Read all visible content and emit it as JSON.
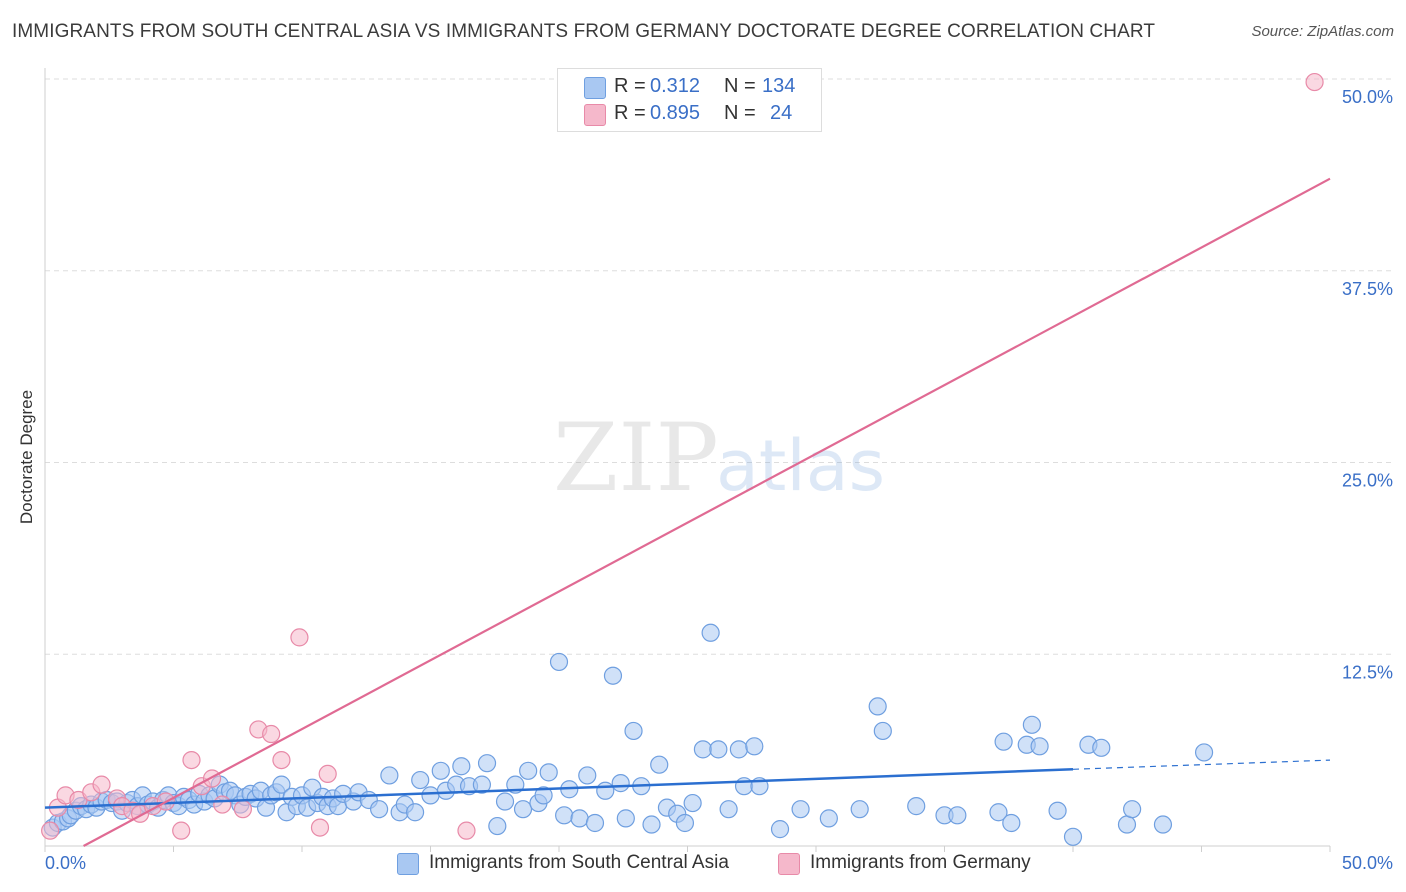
{
  "title": "IMMIGRANTS FROM SOUTH CENTRAL ASIA VS IMMIGRANTS FROM GERMANY DOCTORATE DEGREE CORRELATION CHART",
  "source": "Source: ZipAtlas.com",
  "watermark": {
    "zip": "ZIP",
    "atlas": "atlas"
  },
  "legend": {
    "rows": [
      {
        "r_label": "R =",
        "r_value": "0.312",
        "n_label": "N =",
        "n_value": "134",
        "color": "#a9c8f2"
      },
      {
        "r_label": "R =",
        "r_value": "0.895",
        "n_label": "N =",
        "n_value": "24",
        "color": "#f5b8cb"
      }
    ]
  },
  "bottom_legend": [
    {
      "label": "Immigrants from South Central Asia",
      "color": "#a9c8f2"
    },
    {
      "label": "Immigrants from Germany",
      "color": "#f5b8cb"
    }
  ],
  "colors": {
    "blue_fill": "#a9c8f2",
    "blue_stroke": "#6f9fe0",
    "blue_line": "#2b6fd0",
    "pink_fill": "#f5b8cb",
    "pink_stroke": "#e88aa8",
    "pink_line": "#e06a93",
    "tick_label": "#3a6fc7",
    "grid": "#dddddd"
  },
  "chart_data": {
    "type": "scatter",
    "title": "IMMIGRANTS FROM SOUTH CENTRAL ASIA VS IMMIGRANTS FROM GERMANY DOCTORATE DEGREE CORRELATION CHART",
    "xlabel": "",
    "ylabel": "Doctorate Degree",
    "xlim": [
      0,
      50
    ],
    "ylim": [
      0,
      50
    ],
    "x_tick_labels": [
      "0.0%",
      "50.0%"
    ],
    "y_tick_labels": [
      "12.5%",
      "25.0%",
      "37.5%",
      "50.0%"
    ],
    "y_ticks": [
      12.5,
      25.0,
      37.5,
      50.0
    ],
    "grid": true,
    "legend_position": "top-center",
    "series": [
      {
        "name": "Immigrants from South Central Asia",
        "color": "#a9c8f2",
        "trend": {
          "x": [
            0,
            40
          ],
          "y": [
            2.5,
            5.0
          ],
          "dashed_extension_to_x": 50,
          "dashed_extension_y": 5.6
        },
        "points": [
          [
            0.3,
            1.2
          ],
          [
            0.5,
            1.5
          ],
          [
            0.7,
            1.6
          ],
          [
            0.9,
            1.8
          ],
          [
            1.0,
            2.0
          ],
          [
            1.2,
            2.3
          ],
          [
            1.4,
            2.6
          ],
          [
            1.6,
            2.4
          ],
          [
            1.8,
            2.7
          ],
          [
            2.0,
            2.5
          ],
          [
            2.2,
            2.9
          ],
          [
            2.4,
            3.0
          ],
          [
            2.6,
            2.8
          ],
          [
            2.8,
            2.9
          ],
          [
            3.0,
            2.3
          ],
          [
            3.2,
            2.8
          ],
          [
            3.4,
            3.0
          ],
          [
            3.6,
            2.6
          ],
          [
            3.8,
            3.3
          ],
          [
            4.0,
            2.7
          ],
          [
            4.2,
            2.9
          ],
          [
            4.4,
            2.5
          ],
          [
            4.6,
            3.0
          ],
          [
            4.8,
            3.3
          ],
          [
            5.0,
            2.8
          ],
          [
            5.2,
            2.6
          ],
          [
            5.4,
            3.2
          ],
          [
            5.6,
            3.0
          ],
          [
            5.8,
            2.7
          ],
          [
            6.0,
            3.4
          ],
          [
            6.2,
            2.9
          ],
          [
            6.4,
            3.3
          ],
          [
            6.6,
            3.1
          ],
          [
            6.8,
            4.0
          ],
          [
            7.0,
            3.5
          ],
          [
            7.2,
            3.6
          ],
          [
            7.4,
            3.3
          ],
          [
            7.6,
            2.7
          ],
          [
            7.8,
            3.2
          ],
          [
            8.0,
            3.4
          ],
          [
            8.2,
            3.1
          ],
          [
            8.4,
            3.6
          ],
          [
            8.6,
            2.5
          ],
          [
            8.8,
            3.3
          ],
          [
            9.0,
            3.5
          ],
          [
            9.2,
            4.0
          ],
          [
            9.4,
            2.2
          ],
          [
            9.6,
            3.2
          ],
          [
            9.8,
            2.6
          ],
          [
            10.0,
            3.3
          ],
          [
            10.2,
            2.5
          ],
          [
            10.4,
            3.8
          ],
          [
            10.6,
            2.8
          ],
          [
            10.8,
            3.2
          ],
          [
            11.0,
            2.6
          ],
          [
            11.2,
            3.1
          ],
          [
            11.4,
            2.6
          ],
          [
            11.6,
            3.4
          ],
          [
            12.0,
            2.9
          ],
          [
            12.2,
            3.5
          ],
          [
            12.6,
            3.0
          ],
          [
            13.0,
            2.4
          ],
          [
            13.4,
            4.6
          ],
          [
            13.8,
            2.2
          ],
          [
            14.0,
            2.7
          ],
          [
            14.4,
            2.2
          ],
          [
            14.6,
            4.3
          ],
          [
            15.0,
            3.3
          ],
          [
            15.4,
            4.9
          ],
          [
            15.6,
            3.6
          ],
          [
            16.0,
            4.0
          ],
          [
            16.2,
            5.2
          ],
          [
            16.5,
            3.9
          ],
          [
            17.0,
            4.0
          ],
          [
            17.2,
            5.4
          ],
          [
            17.6,
            1.3
          ],
          [
            17.9,
            2.9
          ],
          [
            18.3,
            4.0
          ],
          [
            18.6,
            2.4
          ],
          [
            18.8,
            4.9
          ],
          [
            19.2,
            2.8
          ],
          [
            19.4,
            3.3
          ],
          [
            19.6,
            4.8
          ],
          [
            20.0,
            12.0
          ],
          [
            20.2,
            2.0
          ],
          [
            20.4,
            3.7
          ],
          [
            20.8,
            1.8
          ],
          [
            21.1,
            4.6
          ],
          [
            21.4,
            1.5
          ],
          [
            21.8,
            3.6
          ],
          [
            22.1,
            11.1
          ],
          [
            22.4,
            4.1
          ],
          [
            22.6,
            1.8
          ],
          [
            22.9,
            7.5
          ],
          [
            23.2,
            3.9
          ],
          [
            23.6,
            1.4
          ],
          [
            23.9,
            5.3
          ],
          [
            24.2,
            2.5
          ],
          [
            24.6,
            2.1
          ],
          [
            24.9,
            1.5
          ],
          [
            25.2,
            2.8
          ],
          [
            25.6,
            6.3
          ],
          [
            25.9,
            13.9
          ],
          [
            26.2,
            6.3
          ],
          [
            26.6,
            2.4
          ],
          [
            27.0,
            6.3
          ],
          [
            27.2,
            3.9
          ],
          [
            27.6,
            6.5
          ],
          [
            27.8,
            3.9
          ],
          [
            28.6,
            1.1
          ],
          [
            29.4,
            2.4
          ],
          [
            30.5,
            1.8
          ],
          [
            31.7,
            2.4
          ],
          [
            32.4,
            9.1
          ],
          [
            32.6,
            7.5
          ],
          [
            33.9,
            2.6
          ],
          [
            35.0,
            2.0
          ],
          [
            35.5,
            2.0
          ],
          [
            37.1,
            2.2
          ],
          [
            37.3,
            6.8
          ],
          [
            37.6,
            1.5
          ],
          [
            38.2,
            6.6
          ],
          [
            38.4,
            7.9
          ],
          [
            38.7,
            6.5
          ],
          [
            39.4,
            2.3
          ],
          [
            40.0,
            0.6
          ],
          [
            40.6,
            6.6
          ],
          [
            41.1,
            6.4
          ],
          [
            42.1,
            1.4
          ],
          [
            42.3,
            2.4
          ],
          [
            43.5,
            1.4
          ],
          [
            45.1,
            6.1
          ]
        ]
      },
      {
        "name": "Immigrants from Germany",
        "color": "#f5b8cb",
        "trend": {
          "x": [
            1.5,
            50
          ],
          "y": [
            0,
            43.5
          ]
        },
        "points": [
          [
            0.2,
            1.0
          ],
          [
            0.5,
            2.5
          ],
          [
            0.8,
            3.3
          ],
          [
            1.3,
            3.0
          ],
          [
            1.8,
            3.5
          ],
          [
            2.2,
            4.0
          ],
          [
            2.8,
            3.1
          ],
          [
            3.0,
            2.6
          ],
          [
            3.4,
            2.3
          ],
          [
            3.7,
            2.1
          ],
          [
            4.2,
            2.6
          ],
          [
            4.7,
            2.9
          ],
          [
            5.3,
            1.0
          ],
          [
            5.7,
            5.6
          ],
          [
            6.1,
            3.9
          ],
          [
            6.5,
            4.4
          ],
          [
            6.9,
            2.7
          ],
          [
            7.7,
            2.4
          ],
          [
            8.3,
            7.6
          ],
          [
            8.8,
            7.3
          ],
          [
            9.2,
            5.6
          ],
          [
            9.9,
            13.6
          ],
          [
            10.7,
            1.2
          ],
          [
            11.0,
            4.7
          ],
          [
            16.4,
            1.0
          ],
          [
            49.4,
            49.8
          ]
        ]
      }
    ]
  }
}
